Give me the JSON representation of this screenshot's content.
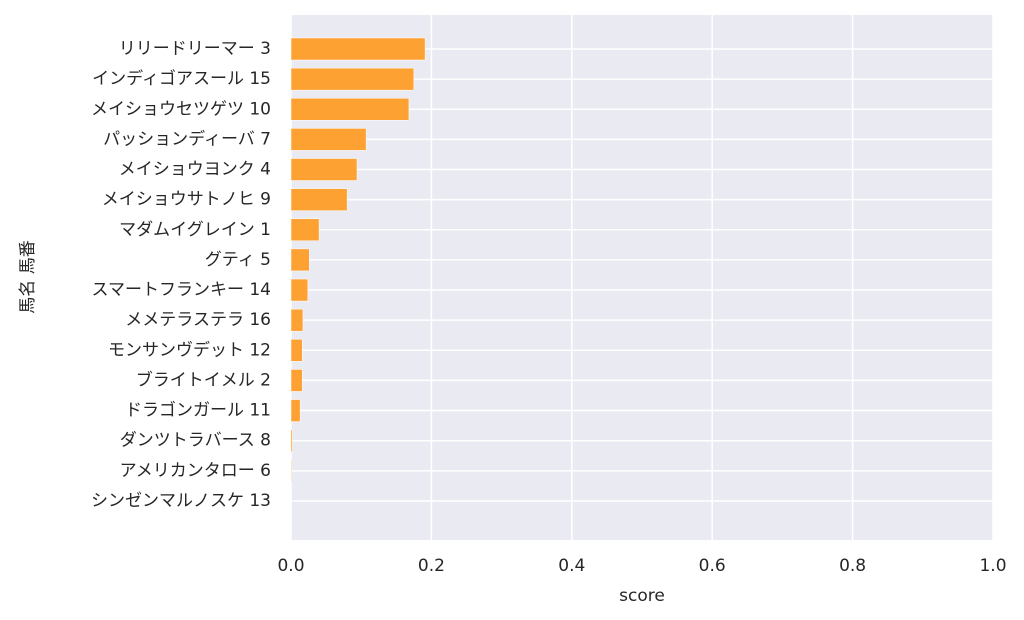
{
  "chart_data": {
    "type": "barh",
    "x_label": "score",
    "y_label": "馬名 馬番",
    "categories": [
      "リリードリーマー 3",
      "インディゴアスール 15",
      "メイショウセツゲツ 10",
      "パッションディーバ 7",
      "メイショウヨンク 4",
      "メイショウサトノヒ 9",
      "マダムイグレイン 1",
      "グティ 5",
      "スマートフランキー 14",
      "メメテラステラ 16",
      "モンサンヴデット 12",
      "ブライトイメル 2",
      "ドラゴンガール 11",
      "ダンツトラバース 8",
      "アメリカンタロー 6",
      "シンゼンマルノスケ 13"
    ],
    "values": [
      0.191,
      0.175,
      0.168,
      0.107,
      0.094,
      0.08,
      0.04,
      0.026,
      0.024,
      0.017,
      0.016,
      0.016,
      0.013,
      0.002,
      0.001,
      0
    ],
    "color": "#fda133",
    "xlim": [
      0,
      1
    ],
    "xticks": [
      {
        "value": 0,
        "label": "0.0"
      },
      0.2,
      0.4,
      0.6,
      0.8,
      {
        "value": 1,
        "label": "1.0"
      }
    ],
    "grid": true
  }
}
